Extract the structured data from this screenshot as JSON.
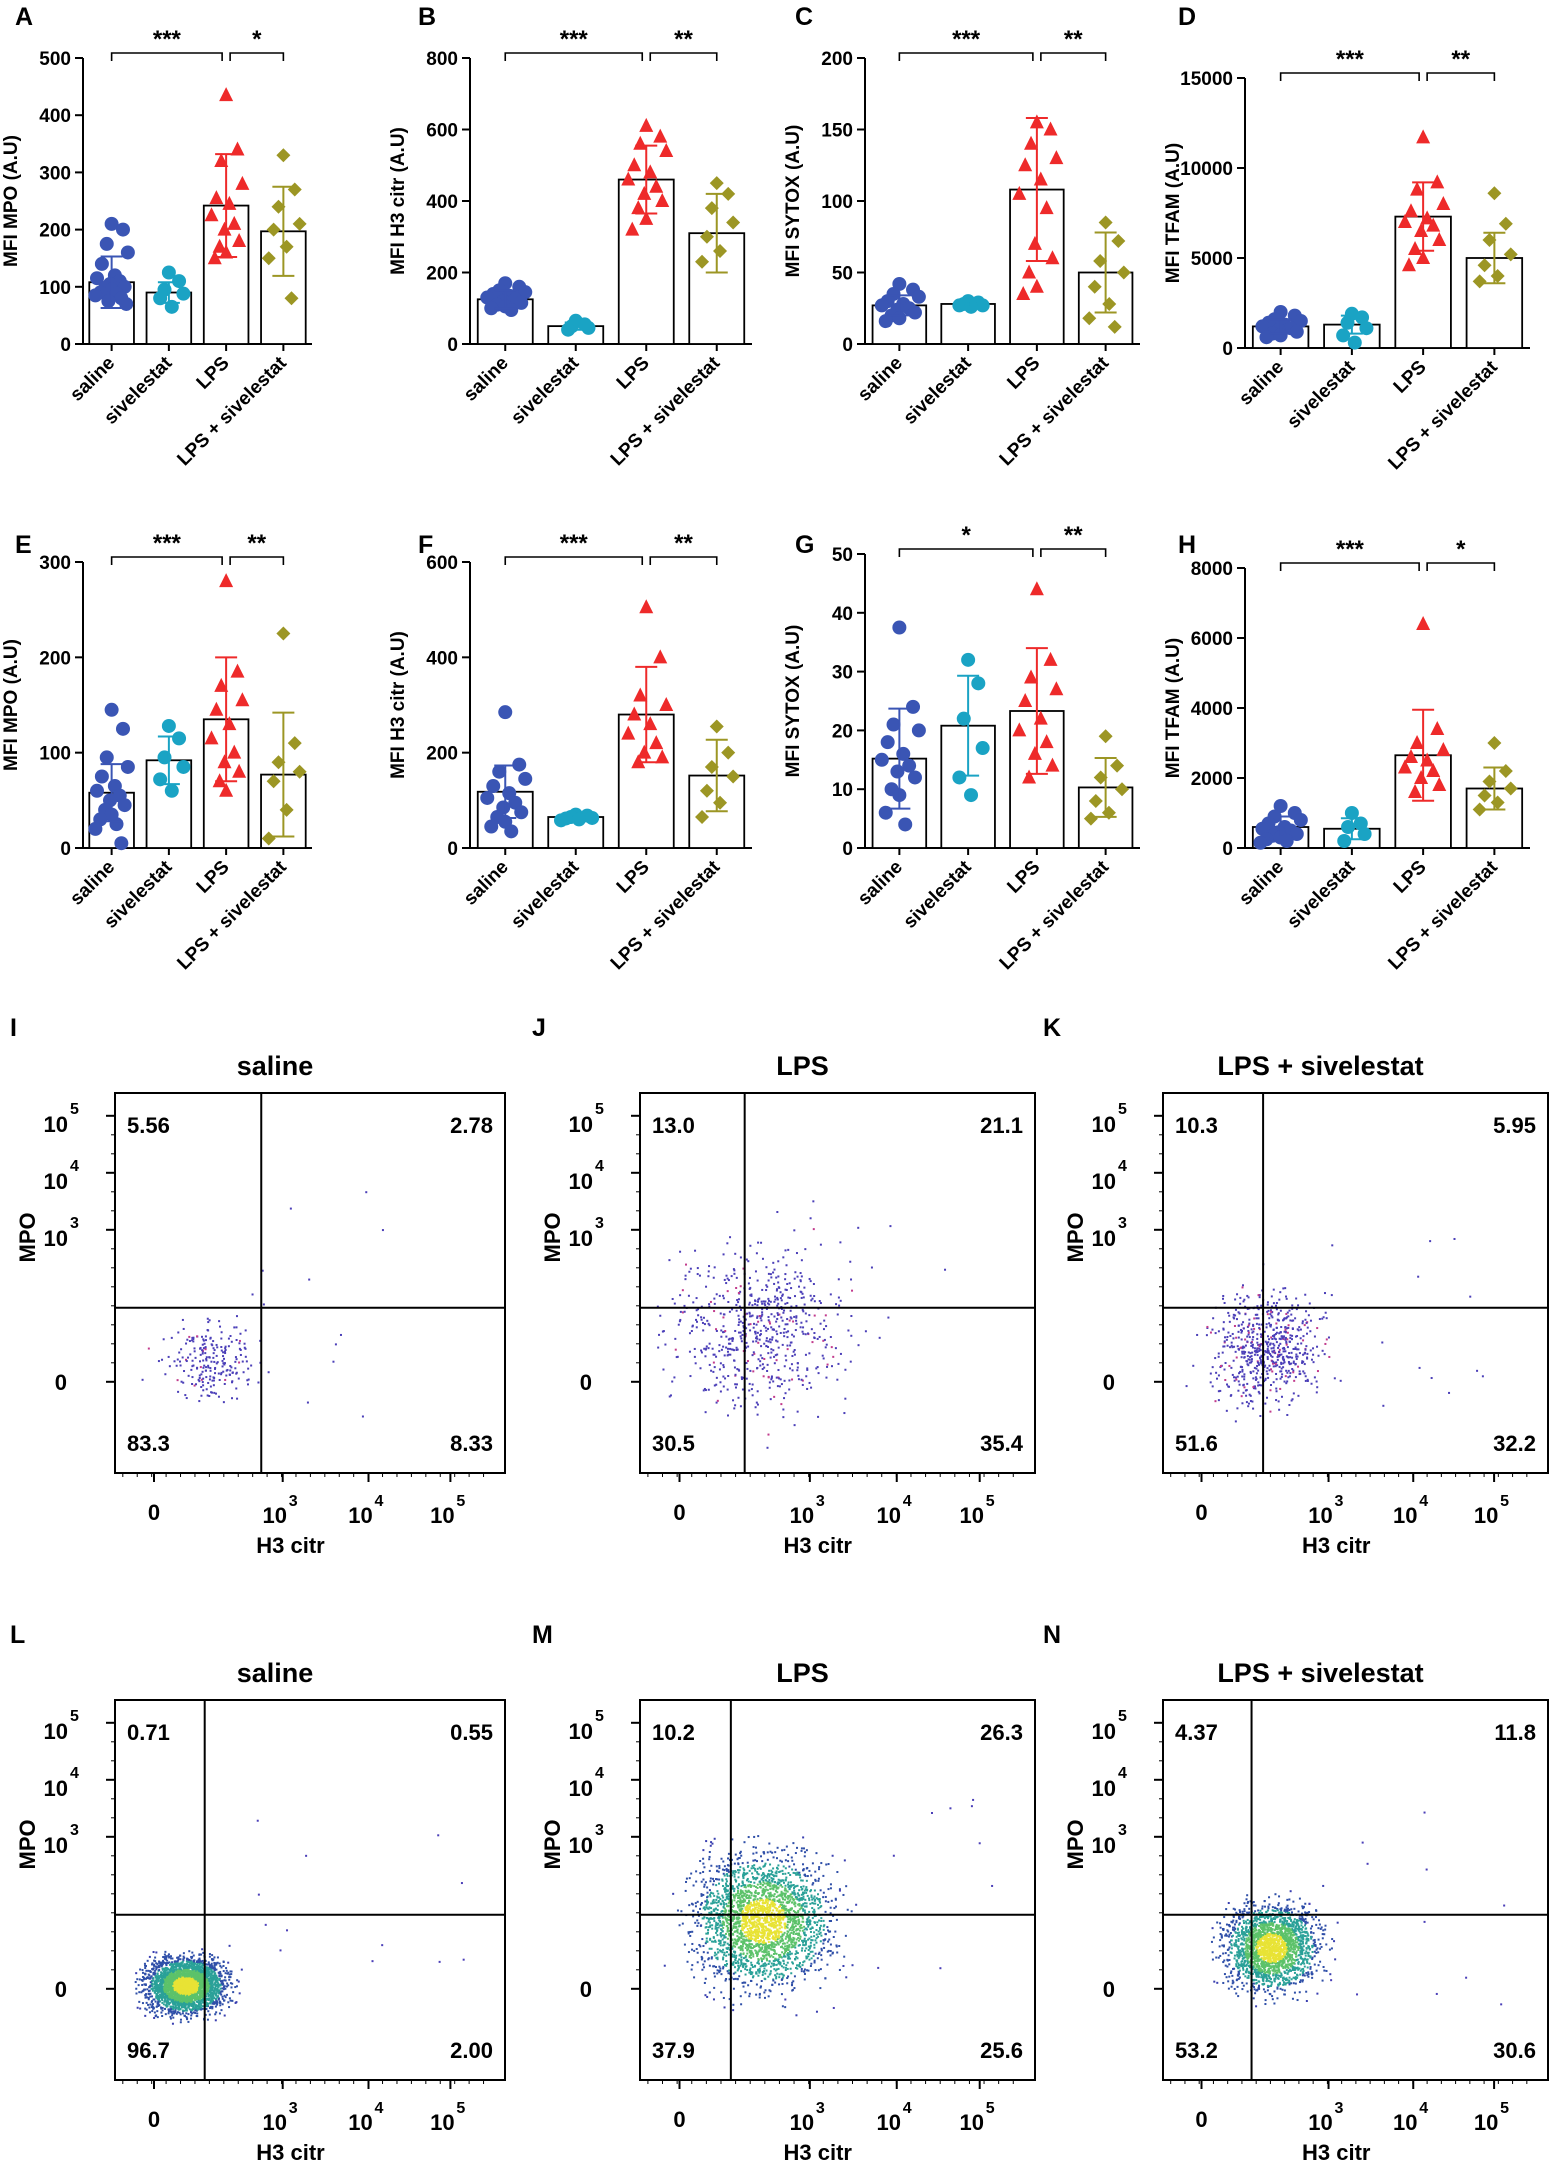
{
  "colors": {
    "saline": "#3a55b4",
    "sivelestat": "#1aa3c4",
    "LPS": "#ee2a2a",
    "LPS + sivelestat": "#9c9624"
  },
  "chart_data": [
    {
      "label": "A",
      "type": "bar",
      "ylabel": "MFI MPO (A.U)",
      "ylim": [
        0,
        500
      ],
      "yticks": [
        0,
        100,
        200,
        300,
        400,
        500
      ],
      "categories": [
        "saline",
        "sivelestat",
        "LPS",
        "LPS + sivelestat"
      ],
      "means": [
        108,
        90,
        242,
        197
      ],
      "sd": [
        45,
        18,
        90,
        78
      ],
      "points": [
        [
          210,
          200,
          175,
          160,
          140,
          120,
          115,
          110,
          105,
          100,
          98,
          95,
          90,
          88,
          85,
          80,
          75,
          70
        ],
        [
          125,
          110,
          95,
          88,
          80,
          65
        ],
        [
          435,
          340,
          320,
          280,
          255,
          245,
          225,
          210,
          200,
          180,
          170,
          160,
          150
        ],
        [
          330,
          270,
          240,
          210,
          200,
          170,
          150,
          80
        ]
      ],
      "brackets": [
        {
          "from": 0,
          "to": 2,
          "text": "***"
        },
        {
          "from": 2,
          "to": 3,
          "text": "*"
        }
      ]
    },
    {
      "label": "B",
      "type": "bar",
      "ylabel": "MFI H3 citr (A.U)",
      "ylim": [
        0,
        800
      ],
      "yticks": [
        0,
        200,
        400,
        600,
        800
      ],
      "categories": [
        "saline",
        "sivelestat",
        "LPS",
        "LPS + sivelestat"
      ],
      "means": [
        125,
        50,
        460,
        310
      ],
      "sd": [
        25,
        10,
        95,
        110
      ],
      "points": [
        [
          170,
          160,
          150,
          145,
          140,
          135,
          130,
          125,
          120,
          115,
          110,
          105,
          100,
          95
        ],
        [
          65,
          55,
          50,
          45,
          40
        ],
        [
          610,
          580,
          560,
          540,
          500,
          480,
          460,
          440,
          420,
          400,
          380,
          350,
          320
        ],
        [
          450,
          420,
          380,
          340,
          300,
          260,
          230
        ]
      ],
      "brackets": [
        {
          "from": 0,
          "to": 2,
          "text": "***"
        },
        {
          "from": 2,
          "to": 3,
          "text": "**"
        }
      ]
    },
    {
      "label": "C",
      "type": "bar",
      "ylabel": "MFI SYTOX (A.U)",
      "ylim": [
        0,
        200
      ],
      "yticks": [
        0,
        50,
        100,
        150,
        200
      ],
      "categories": [
        "saline",
        "sivelestat",
        "LPS",
        "LPS + sivelestat"
      ],
      "means": [
        27,
        28,
        108,
        50
      ],
      "sd": [
        7,
        2,
        50,
        28
      ],
      "points": [
        [
          42,
          38,
          35,
          33,
          30,
          28,
          27,
          25,
          24,
          22,
          20,
          18,
          16
        ],
        [
          30,
          29,
          28,
          27,
          27,
          26
        ],
        [
          155,
          150,
          140,
          130,
          125,
          115,
          105,
          95,
          70,
          60,
          50,
          40,
          35
        ],
        [
          85,
          72,
          58,
          50,
          40,
          28,
          18,
          12
        ]
      ],
      "brackets": [
        {
          "from": 0,
          "to": 2,
          "text": "***"
        },
        {
          "from": 2,
          "to": 3,
          "text": "**"
        }
      ]
    },
    {
      "label": "D",
      "type": "bar",
      "ylabel": "MFI TFAM (A.U)",
      "ylim": [
        0,
        15000
      ],
      "yticks": [
        0,
        5000,
        10000,
        15000
      ],
      "categories": [
        "saline",
        "sivelestat",
        "LPS",
        "LPS + sivelestat"
      ],
      "means": [
        1200,
        1300,
        7300,
        5000
      ],
      "sd": [
        400,
        500,
        1900,
        1400
      ],
      "points": [
        [
          2000,
          1800,
          1600,
          1500,
          1400,
          1300,
          1200,
          1100,
          1000,
          900,
          800,
          700,
          600
        ],
        [
          1900,
          1700,
          1400,
          1100,
          700,
          300
        ],
        [
          11700,
          9200,
          8800,
          8000,
          7600,
          7200,
          7000,
          6800,
          6500,
          6000,
          5500,
          5000,
          4600
        ],
        [
          8600,
          6900,
          6000,
          5200,
          4600,
          4000,
          3700
        ]
      ],
      "brackets": [
        {
          "from": 0,
          "to": 2,
          "text": "***"
        },
        {
          "from": 2,
          "to": 3,
          "text": "**"
        }
      ]
    },
    {
      "label": "E",
      "type": "bar",
      "ylabel": "MFI MPO (A.U)",
      "ylim": [
        0,
        300
      ],
      "yticks": [
        0,
        100,
        200,
        300
      ],
      "categories": [
        "saline",
        "sivelestat",
        "LPS",
        "LPS + sivelestat"
      ],
      "means": [
        58,
        92,
        135,
        77
      ],
      "sd": [
        30,
        25,
        65,
        65
      ],
      "points": [
        [
          145,
          125,
          95,
          85,
          75,
          65,
          60,
          55,
          50,
          45,
          40,
          35,
          30,
          25,
          20,
          5
        ],
        [
          128,
          115,
          95,
          85,
          72,
          60
        ],
        [
          280,
          185,
          170,
          155,
          145,
          130,
          115,
          100,
          90,
          80,
          70,
          60
        ],
        [
          225,
          110,
          90,
          80,
          70,
          40,
          10
        ]
      ],
      "brackets": [
        {
          "from": 0,
          "to": 2,
          "text": "***"
        },
        {
          "from": 2,
          "to": 3,
          "text": "**"
        }
      ]
    },
    {
      "label": "F",
      "type": "bar",
      "ylabel": "MFI H3 citr (A.U)",
      "ylim": [
        0,
        600
      ],
      "yticks": [
        0,
        200,
        400,
        600
      ],
      "categories": [
        "saline",
        "sivelestat",
        "LPS",
        "LPS + sivelestat"
      ],
      "means": [
        118,
        65,
        280,
        152
      ],
      "sd": [
        55,
        5,
        100,
        75
      ],
      "points": [
        [
          285,
          175,
          160,
          145,
          130,
          115,
          105,
          95,
          85,
          75,
          65,
          55,
          45,
          35
        ],
        [
          70,
          68,
          65,
          63,
          62,
          60,
          58
        ],
        [
          505,
          400,
          320,
          300,
          280,
          260,
          240,
          220,
          200,
          190,
          180
        ],
        [
          255,
          200,
          170,
          150,
          120,
          95,
          65
        ]
      ],
      "brackets": [
        {
          "from": 0,
          "to": 2,
          "text": "***"
        },
        {
          "from": 2,
          "to": 3,
          "text": "**"
        }
      ]
    },
    {
      "label": "G",
      "type": "bar",
      "ylabel": "MFI SYTOX (A.U)",
      "ylim": [
        0,
        50
      ],
      "yticks": [
        0,
        10,
        20,
        30,
        40,
        50
      ],
      "categories": [
        "saline",
        "sivelestat",
        "LPS",
        "LPS + sivelestat"
      ],
      "means": [
        15.2,
        20.8,
        23.3,
        10.3
      ],
      "sd": [
        8.5,
        8.5,
        10.7,
        5
      ],
      "points": [
        [
          37.5,
          24,
          21,
          20,
          18,
          16,
          15,
          14,
          13,
          12,
          10,
          9,
          6,
          4
        ],
        [
          32,
          28,
          22,
          17,
          12,
          9
        ],
        [
          44,
          32,
          29,
          27,
          25,
          22,
          20,
          18,
          16,
          14,
          12
        ],
        [
          19,
          14,
          12,
          10,
          8,
          6,
          5
        ]
      ],
      "brackets": [
        {
          "from": 0,
          "to": 2,
          "text": "*"
        },
        {
          "from": 2,
          "to": 3,
          "text": "**"
        }
      ]
    },
    {
      "label": "H",
      "type": "bar",
      "ylabel": "MFI TFAM (A.U)",
      "ylim": [
        0,
        8000
      ],
      "yticks": [
        0,
        2000,
        4000,
        6000,
        8000
      ],
      "categories": [
        "saline",
        "sivelestat",
        "LPS",
        "LPS + sivelestat"
      ],
      "means": [
        600,
        550,
        2650,
        1700
      ],
      "sd": [
        300,
        300,
        1300,
        600
      ],
      "points": [
        [
          1200,
          1000,
          900,
          800,
          700,
          600,
          550,
          500,
          450,
          400,
          350,
          300,
          250,
          200,
          150
        ],
        [
          1000,
          700,
          600,
          400,
          200
        ],
        [
          6400,
          3400,
          3000,
          2800,
          2600,
          2500,
          2300,
          2200,
          2000,
          1800,
          1600
        ],
        [
          3000,
          2200,
          1900,
          1700,
          1500,
          1300,
          1100
        ]
      ],
      "brackets": [
        {
          "from": 0,
          "to": 2,
          "text": "***"
        },
        {
          "from": 2,
          "to": 3,
          "text": "*"
        }
      ]
    }
  ],
  "flow_panels": [
    {
      "label": "I",
      "title": "saline",
      "quadrants": [
        "5.56",
        "2.78",
        "83.3",
        "8.33"
      ],
      "xlabel": "H3 citr",
      "ylabel": "MPO",
      "style": "dots",
      "density": "low"
    },
    {
      "label": "J",
      "title": "LPS",
      "quadrants": [
        "13.0",
        "21.1",
        "30.5",
        "35.4"
      ],
      "xlabel": "H3 citr",
      "ylabel": "MPO",
      "style": "dots",
      "density": "medium"
    },
    {
      "label": "K",
      "title": "LPS + sivelestat",
      "quadrants": [
        "10.3",
        "5.95",
        "51.6",
        "32.2"
      ],
      "xlabel": "H3 citr",
      "ylabel": "MPO",
      "style": "dots",
      "density": "medium"
    },
    {
      "label": "L",
      "title": "saline",
      "quadrants": [
        "0.71",
        "0.55",
        "96.7",
        "2.00"
      ],
      "xlabel": "H3 citr",
      "ylabel": "MPO",
      "style": "density",
      "density": "high"
    },
    {
      "label": "M",
      "title": "LPS",
      "quadrants": [
        "10.2",
        "26.3",
        "37.9",
        "25.6"
      ],
      "xlabel": "H3 citr",
      "ylabel": "MPO",
      "style": "density",
      "density": "high"
    },
    {
      "label": "N",
      "title": "LPS + sivelestat",
      "quadrants": [
        "4.37",
        "11.8",
        "53.2",
        "30.6"
      ],
      "xlabel": "H3 citr",
      "ylabel": "MPO",
      "style": "density",
      "density": "high"
    }
  ],
  "flow_axis": {
    "y_ticks": [
      {
        "base": "10",
        "exp": "5"
      },
      {
        "base": "10",
        "exp": "4"
      },
      {
        "base": "10",
        "exp": "3"
      },
      {
        "base": "0",
        "exp": ""
      }
    ],
    "x_ticks": [
      {
        "base": "0",
        "exp": ""
      },
      {
        "base": "10",
        "exp": "3"
      },
      {
        "base": "10",
        "exp": "4"
      },
      {
        "base": "10",
        "exp": "5"
      }
    ]
  }
}
